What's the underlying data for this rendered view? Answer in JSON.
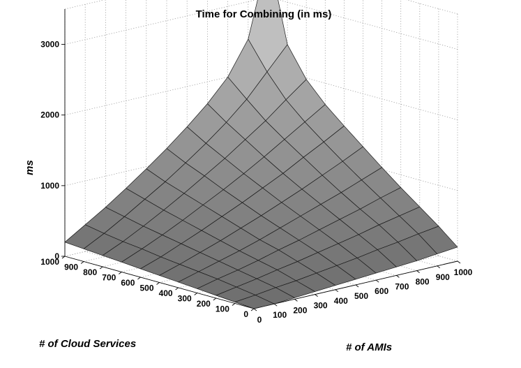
{
  "chart_data": {
    "type": "surface",
    "title": "Time for Combining (in ms)",
    "xlabel": "# of AMIs",
    "ylabel": "# of Cloud Services",
    "zlabel": "ms",
    "x": [
      0,
      100,
      200,
      300,
      400,
      500,
      600,
      700,
      800,
      900,
      1000
    ],
    "y": [
      0,
      100,
      200,
      300,
      400,
      500,
      600,
      700,
      800,
      900,
      1000
    ],
    "x_tick_labels": [
      "0",
      "100",
      "200",
      "300",
      "400",
      "500",
      "600",
      "700",
      "800",
      "900",
      "1000"
    ],
    "y_tick_labels": [
      "0",
      "100",
      "200",
      "300",
      "400",
      "500",
      "600",
      "700",
      "800",
      "900",
      "1000"
    ],
    "z_tick_labels": [
      "0",
      "1000",
      "2000",
      "3000"
    ],
    "zlim": [
      0,
      3500
    ],
    "z_ticks": [
      0,
      1000,
      2000,
      3000
    ],
    "grid": true,
    "z_values_rows_by_cloud_services_cols_by_AMIs": [
      [
        0,
        0,
        20,
        40,
        60,
        80,
        100,
        120,
        140,
        170,
        200
      ],
      [
        20,
        50,
        90,
        120,
        160,
        200,
        240,
        290,
        330,
        380,
        420
      ],
      [
        40,
        90,
        140,
        200,
        250,
        310,
        370,
        430,
        500,
        560,
        620
      ],
      [
        60,
        130,
        190,
        260,
        340,
        410,
        490,
        570,
        650,
        740,
        820
      ],
      [
        80,
        160,
        240,
        320,
        410,
        510,
        610,
        710,
        810,
        920,
        1030
      ],
      [
        100,
        190,
        290,
        390,
        500,
        610,
        730,
        850,
        980,
        1110,
        1250
      ],
      [
        120,
        220,
        340,
        460,
        590,
        720,
        860,
        1000,
        1160,
        1310,
        1470
      ],
      [
        140,
        260,
        390,
        530,
        680,
        830,
        990,
        1160,
        1340,
        1520,
        1700
      ],
      [
        160,
        290,
        440,
        600,
        770,
        950,
        1130,
        1330,
        1530,
        1760,
        1980
      ],
      [
        180,
        330,
        500,
        680,
        860,
        1060,
        1270,
        1500,
        1760,
        2080,
        2400
      ],
      [
        200,
        380,
        560,
        760,
        970,
        1190,
        1430,
        1690,
        2000,
        2470,
        3600
      ]
    ]
  }
}
